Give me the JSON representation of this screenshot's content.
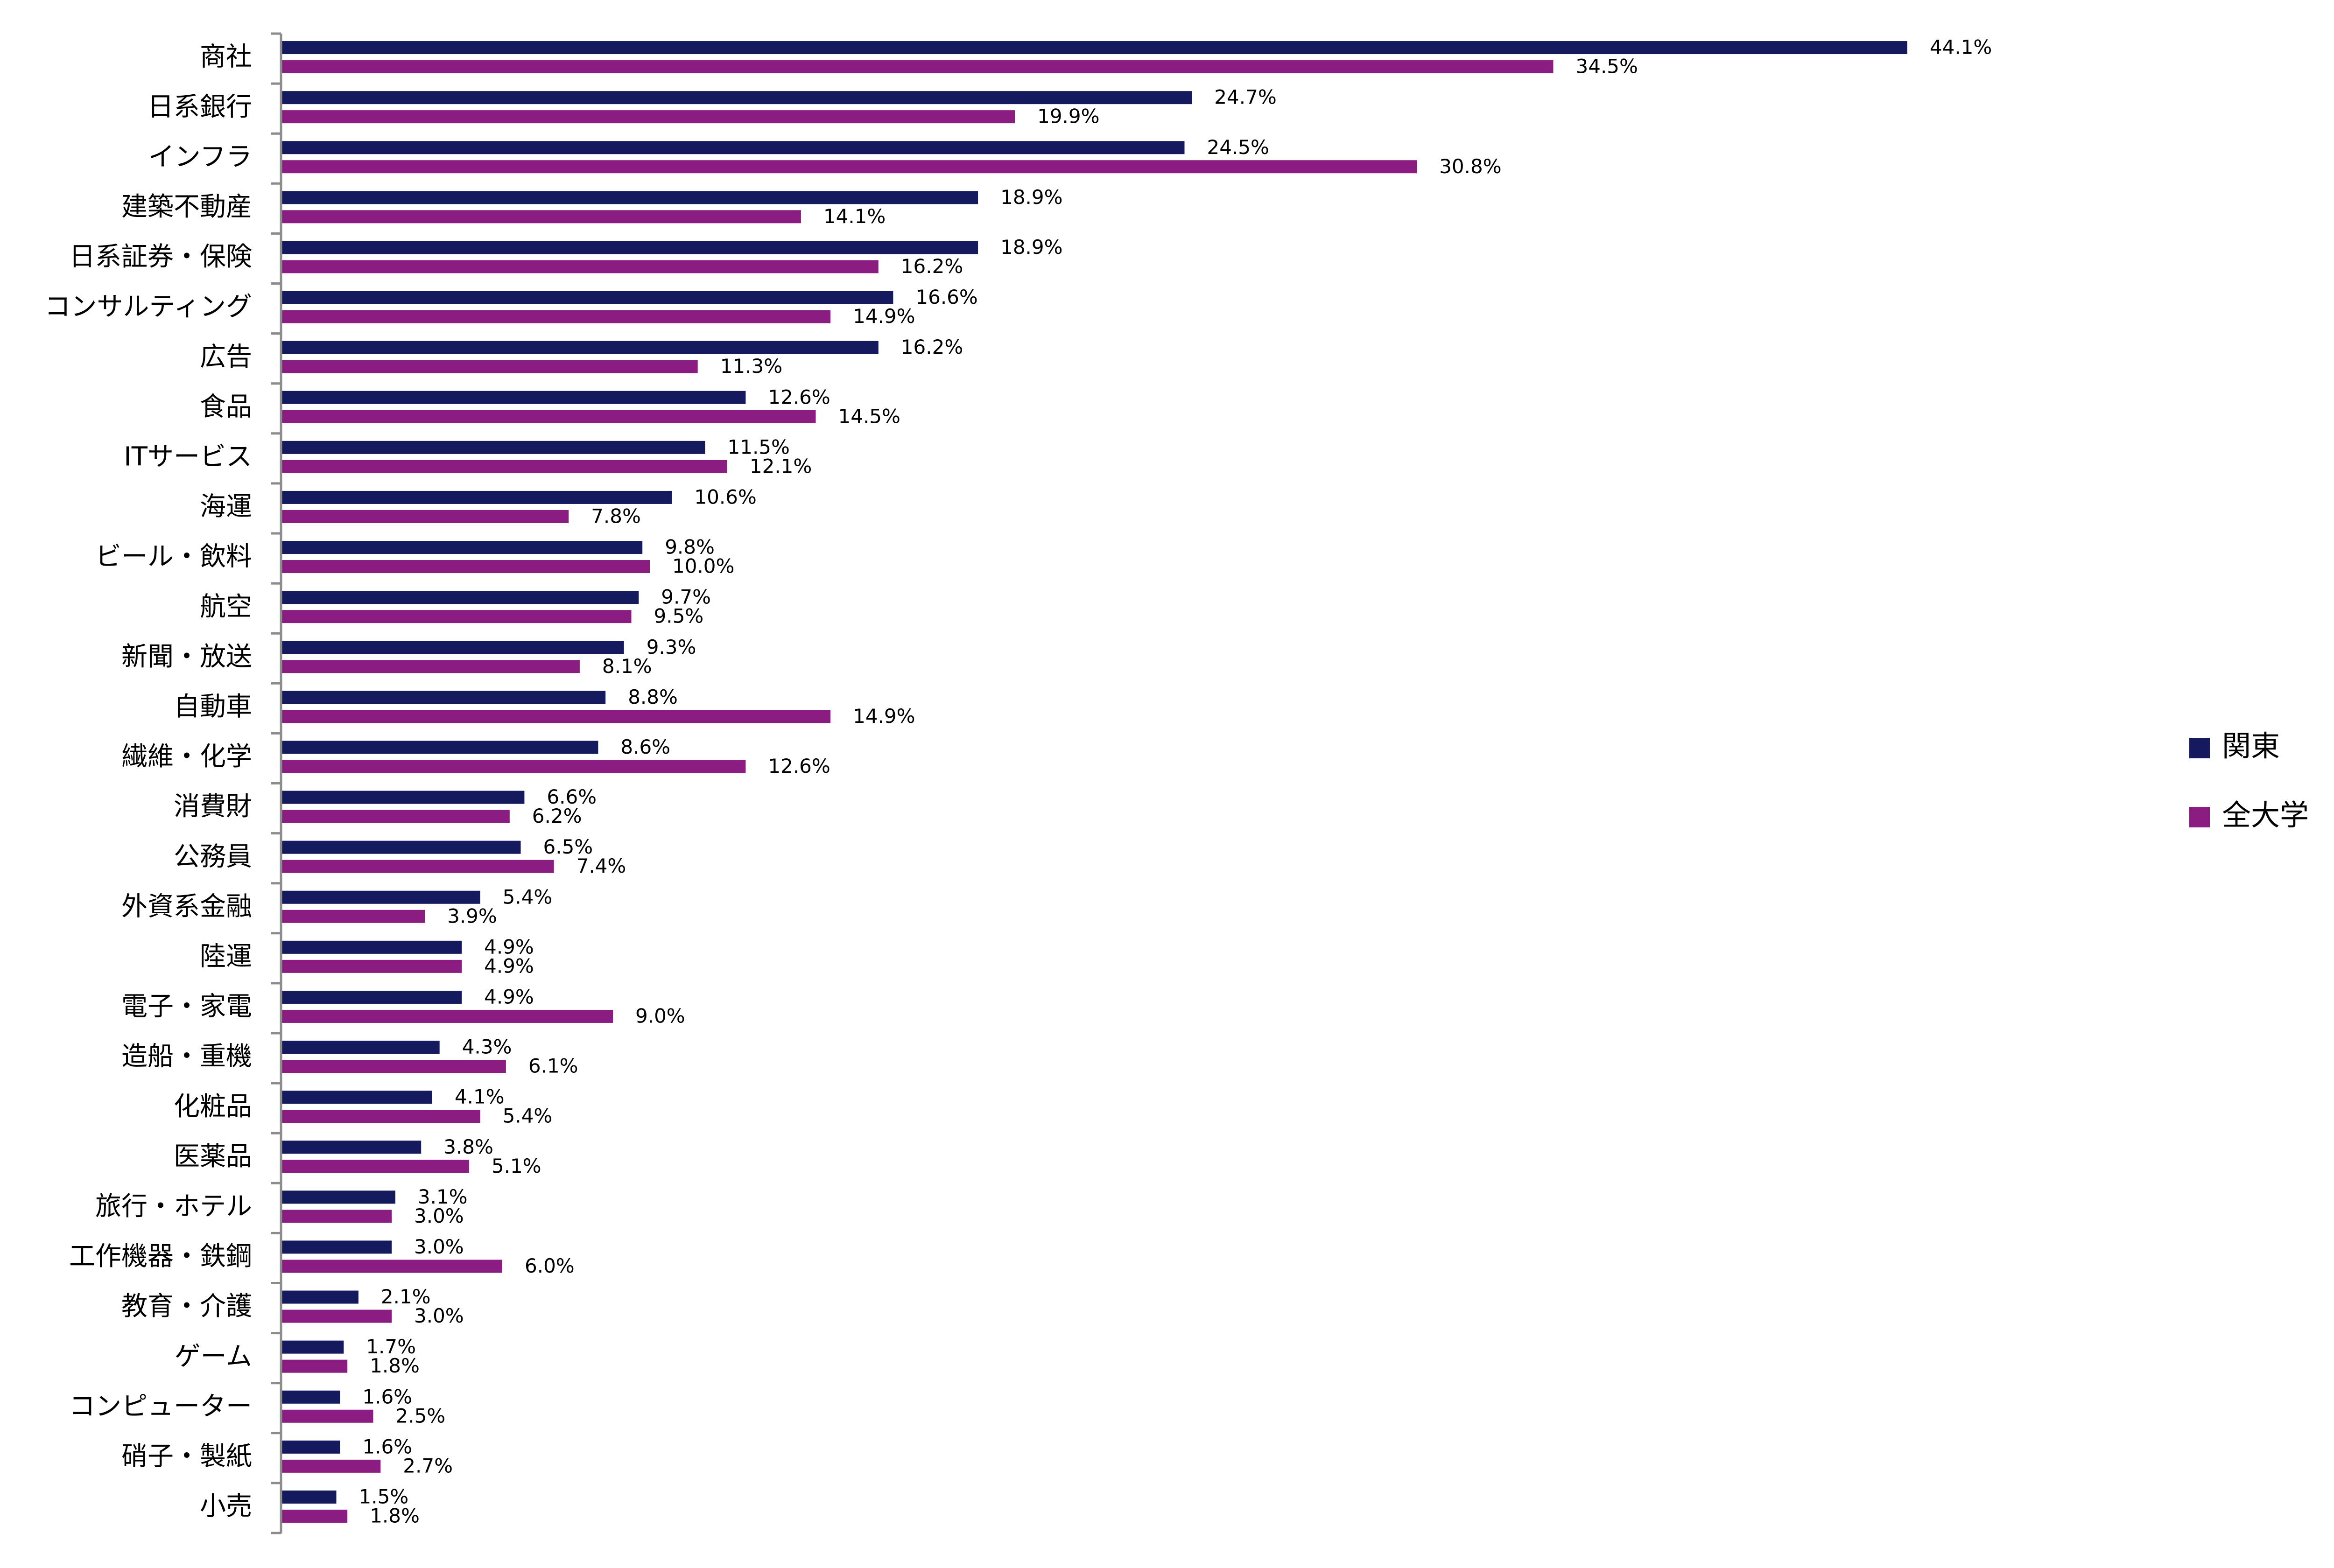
{
  "chart_data": {
    "type": "bar",
    "orientation": "horizontal",
    "title": "",
    "xlabel": "",
    "ylabel": "",
    "xlim": [
      0,
      50
    ],
    "grid": false,
    "legend_position": "right",
    "categories": [
      "商社",
      "日系銀行",
      "インフラ",
      "建築不動産",
      "日系証券・保険",
      "コンサルティング",
      "広告",
      "食品",
      "ITサービス",
      "海運",
      "ビール・飲料",
      "航空",
      "新聞・放送",
      "自動車",
      "繊維・化学",
      "消費財",
      "公務員",
      "外資系金融",
      "陸運",
      "電子・家電",
      "造船・重機",
      "化粧品",
      "医薬品",
      "旅行・ホテル",
      "工作機器・鉄鋼",
      "教育・介護",
      "ゲーム",
      "コンピューター",
      "硝子・製紙",
      "小売"
    ],
    "series": [
      {
        "name": "関東",
        "color": "#151A5E",
        "values": [
          44.1,
          24.7,
          24.5,
          18.9,
          18.9,
          16.6,
          16.2,
          12.6,
          11.5,
          10.6,
          9.8,
          9.7,
          9.3,
          8.8,
          8.6,
          6.6,
          6.5,
          5.4,
          4.9,
          4.9,
          4.3,
          4.1,
          3.8,
          3.1,
          3.0,
          2.1,
          1.7,
          1.6,
          1.6,
          1.5
        ],
        "labels": [
          "44.1%",
          "24.7%",
          "24.5%",
          "18.9%",
          "18.9%",
          "16.6%",
          "16.2%",
          "12.6%",
          "11.5%",
          "10.6%",
          "9.8%",
          "9.7%",
          "9.3%",
          "8.8%",
          "8.6%",
          "6.6%",
          "6.5%",
          "5.4%",
          "4.9%",
          "4.9%",
          "4.3%",
          "4.1%",
          "3.8%",
          "3.1%",
          "3.0%",
          "2.1%",
          "1.7%",
          "1.6%",
          "1.6%",
          "1.5%"
        ]
      },
      {
        "name": "全大学",
        "color": "#8B1C82",
        "values": [
          34.5,
          19.9,
          30.8,
          14.1,
          16.2,
          14.9,
          11.3,
          14.5,
          12.1,
          7.8,
          10.0,
          9.5,
          8.1,
          14.9,
          12.6,
          6.2,
          7.4,
          3.9,
          4.9,
          9.0,
          6.1,
          5.4,
          5.1,
          3.0,
          6.0,
          3.0,
          1.8,
          2.5,
          2.7,
          1.8
        ],
        "labels": [
          "34.5%",
          "19.9%",
          "30.8%",
          "14.1%",
          "16.2%",
          "14.9%",
          "11.3%",
          "14.5%",
          "12.1%",
          "7.8%",
          "10.0%",
          "9.5%",
          "8.1%",
          "14.9%",
          "12.6%",
          "6.2%",
          "7.4%",
          "3.9%",
          "4.9%",
          "9.0%",
          "6.1%",
          "5.4%",
          "5.1%",
          "3.0%",
          "6.0%",
          "3.0%",
          "1.8%",
          "2.5%",
          "2.7%",
          "1.8%"
        ]
      }
    ]
  }
}
